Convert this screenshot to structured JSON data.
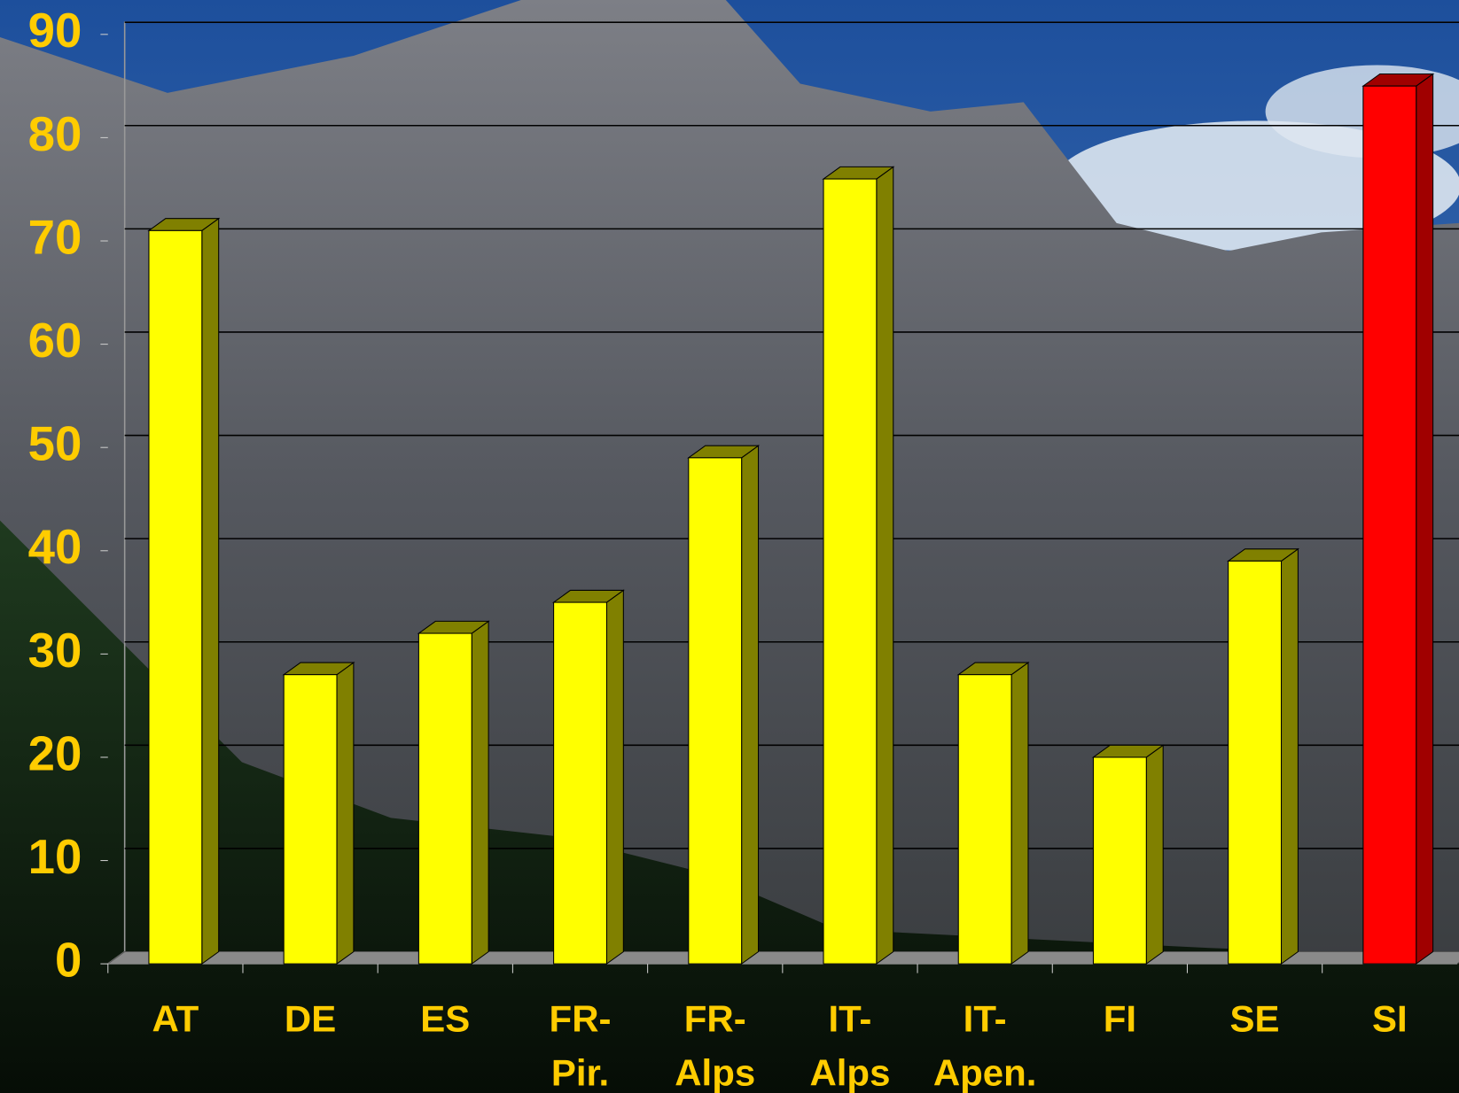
{
  "chart_data": {
    "type": "bar3d",
    "categories": [
      "AT",
      "DE",
      "ES",
      "FR-\nPir.",
      "FR-\nAlps",
      "IT-\nAlps",
      "IT-\nApen.",
      "FI",
      "SE",
      "SI"
    ],
    "values": [
      71,
      28,
      32,
      35,
      49,
      76,
      28,
      20,
      39,
      85
    ],
    "colors": [
      "#ffff00",
      "#ffff00",
      "#ffff00",
      "#ffff00",
      "#ffff00",
      "#ffff00",
      "#ffff00",
      "#ffff00",
      "#ffff00",
      "#ff0000"
    ],
    "side_colors": [
      "#808000",
      "#808000",
      "#808000",
      "#808000",
      "#808000",
      "#808000",
      "#808000",
      "#808000",
      "#808000",
      "#a00000"
    ],
    "ylim": [
      0,
      90
    ],
    "yticks": [
      0,
      10,
      20,
      30,
      40,
      50,
      60,
      70,
      80,
      90
    ],
    "grid": true
  }
}
